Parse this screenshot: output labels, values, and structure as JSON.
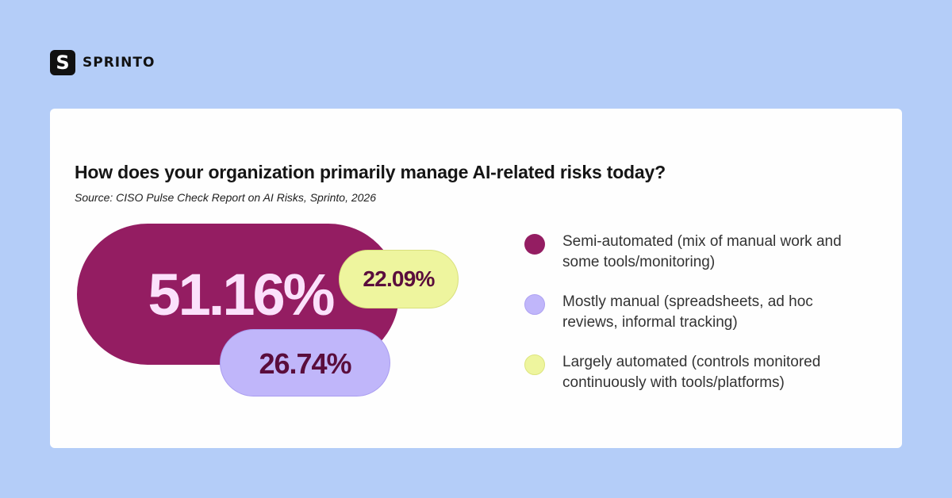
{
  "brand": {
    "mark": "S",
    "name": "SPRINTO"
  },
  "card": {
    "title": "How does your organization primarily manage AI-related risks today?",
    "source": "Source: CISO Pulse Check Report on AI Risks, Sprinto, 2026"
  },
  "colors": {
    "background": "#b4cdf8",
    "semi_automated": "#941d62",
    "mostly_manual": "#c0b6fa",
    "largely_automated": "#eef59e",
    "value_dark": "#5a0d3c",
    "value_light": "#fbe1fb"
  },
  "pills": {
    "semi_automated": "51.16%",
    "largely_automated": "22.09%",
    "mostly_manual": "26.74%"
  },
  "legend": [
    {
      "label": "Semi-automated (mix of manual work and some tools/monitoring)",
      "color": "#941d62"
    },
    {
      "label": "Mostly manual (spreadsheets, ad hoc reviews, informal tracking)",
      "color": "#c0b6fa"
    },
    {
      "label": "Largely automated (controls monitored continuously with tools/platforms)",
      "color": "#eef59e"
    }
  ],
  "chart_data": {
    "type": "bubble",
    "title": "How does your organization primarily manage AI-related risks today?",
    "subtitle": "Source: CISO Pulse Check Report on AI Risks, Sprinto, 2026",
    "categories": [
      "Semi-automated (mix of manual work and some tools/monitoring)",
      "Mostly manual (spreadsheets, ad hoc reviews, informal tracking)",
      "Largely automated (controls monitored continuously with tools/platforms)"
    ],
    "values": [
      51.16,
      26.74,
      22.09
    ],
    "unit": "%",
    "legend_position": "right"
  }
}
